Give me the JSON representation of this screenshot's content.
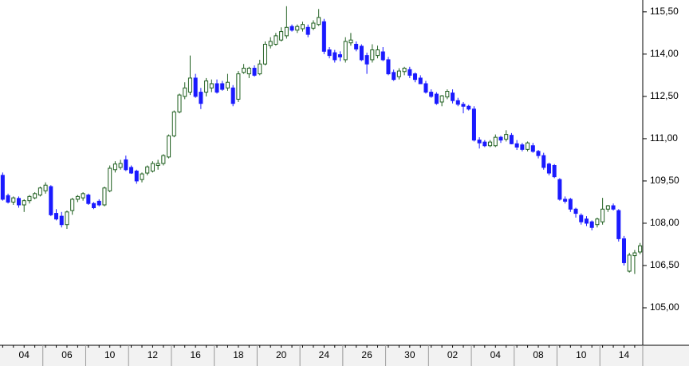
{
  "chart_data": {
    "type": "candlestick",
    "categories": [
      null,
      null,
      null,
      null,
      "04",
      null,
      null,
      null,
      null,
      null,
      null,
      null,
      "06",
      null,
      null,
      null,
      null,
      null,
      null,
      null,
      "10",
      null,
      null,
      null,
      null,
      null,
      null,
      null,
      "12",
      null,
      null,
      null,
      null,
      null,
      null,
      null,
      "16",
      null,
      null,
      null,
      null,
      null,
      null,
      null,
      "18",
      null,
      null,
      null,
      null,
      null,
      null,
      null,
      "20",
      null,
      null,
      null,
      null,
      null,
      null,
      null,
      "24",
      null,
      null,
      null,
      null,
      null,
      null,
      null,
      "26",
      null,
      null,
      null,
      null,
      null,
      null,
      null,
      "30",
      null,
      null,
      null,
      null,
      null,
      null,
      null,
      "02",
      null,
      null,
      null,
      null,
      null,
      null,
      null,
      "04",
      null,
      null,
      null,
      null,
      null,
      null,
      null,
      "08",
      null,
      null,
      null,
      null,
      null,
      null,
      null,
      "10",
      null,
      null,
      null,
      null,
      null,
      null,
      null,
      "14",
      null,
      null,
      null
    ],
    "open": [
      109.7,
      108.98,
      108.75,
      108.88,
      108.65,
      108.8,
      108.9,
      109.0,
      109.15,
      109.3,
      108.35,
      108.25,
      107.95,
      108.45,
      108.85,
      108.9,
      109.0,
      108.7,
      108.78,
      108.65,
      109.15,
      109.9,
      109.98,
      110.25,
      109.98,
      109.85,
      109.55,
      109.78,
      109.85,
      110.05,
      110.12,
      110.35,
      111.1,
      111.95,
      112.5,
      112.65,
      113.15,
      112.65,
      112.65,
      112.8,
      112.95,
      112.95,
      112.8,
      112.8,
      112.4,
      113.35,
      113.3,
      113.5,
      113.3,
      113.65,
      114.3,
      114.35,
      114.5,
      114.65,
      114.98,
      114.85,
      114.9,
      114.95,
      114.92,
      115.05,
      115.15,
      114.15,
      114.05,
      113.98,
      113.8,
      114.4,
      114.35,
      114.28,
      113.95,
      113.8,
      113.95,
      114.08,
      113.8,
      113.35,
      113.2,
      113.38,
      113.45,
      113.3,
      113.15,
      112.95,
      112.65,
      112.58,
      112.3,
      112.48,
      112.62,
      112.35,
      112.22,
      112.15,
      112.05,
      110.95,
      110.88,
      110.75,
      110.75,
      111.05,
      110.98,
      111.12,
      110.82,
      110.78,
      110.62,
      110.75,
      110.55,
      110.4,
      110.1,
      110.05,
      109.55,
      108.85,
      108.85,
      108.5,
      108.28,
      108.15,
      108.05,
      107.95,
      108.05,
      108.5,
      108.62,
      108.45,
      107.45,
      106.3,
      106.85,
      106.98
    ],
    "high": [
      109.8,
      109.05,
      108.95,
      108.95,
      108.85,
      109.0,
      109.1,
      109.3,
      109.45,
      109.35,
      108.5,
      108.4,
      108.45,
      108.9,
      109.0,
      109.1,
      109.05,
      108.75,
      108.85,
      109.3,
      110.05,
      110.2,
      110.25,
      110.4,
      110.05,
      109.9,
      109.8,
      110.05,
      110.2,
      110.25,
      110.45,
      111.15,
      112.0,
      112.6,
      113.0,
      113.95,
      113.3,
      112.8,
      113.15,
      113.1,
      113.1,
      113.05,
      113.3,
      112.9,
      113.4,
      113.65,
      113.55,
      113.6,
      113.8,
      114.45,
      114.6,
      114.75,
      114.95,
      115.7,
      115.05,
      115.05,
      115.15,
      115.05,
      115.2,
      115.6,
      115.25,
      114.25,
      114.15,
      114.1,
      114.6,
      114.75,
      114.45,
      114.35,
      114.05,
      114.35,
      114.3,
      114.25,
      113.9,
      113.45,
      113.5,
      113.55,
      113.55,
      113.35,
      113.25,
      113.05,
      112.75,
      112.65,
      112.55,
      112.75,
      112.75,
      112.45,
      112.3,
      112.2,
      112.15,
      111.05,
      110.95,
      110.95,
      111.15,
      111.1,
      111.3,
      111.2,
      110.95,
      110.85,
      110.9,
      110.85,
      110.6,
      110.5,
      110.15,
      110.1,
      109.6,
      108.95,
      108.9,
      108.55,
      108.35,
      108.25,
      108.1,
      108.2,
      108.9,
      108.65,
      108.7,
      108.5,
      107.55,
      106.95,
      107.05,
      107.3
    ],
    "low": [
      108.8,
      108.7,
      108.65,
      108.55,
      108.4,
      108.7,
      108.85,
      108.95,
      109.05,
      108.25,
      108.1,
      107.85,
      107.8,
      108.3,
      108.75,
      108.8,
      108.65,
      108.5,
      108.6,
      108.6,
      109.1,
      109.8,
      109.9,
      109.85,
      109.75,
      109.4,
      109.45,
      109.7,
      109.8,
      109.9,
      110.05,
      110.3,
      111.05,
      111.9,
      112.4,
      112.55,
      112.45,
      112.05,
      112.5,
      112.65,
      112.6,
      112.7,
      112.7,
      112.15,
      112.3,
      113.3,
      113.15,
      113.2,
      113.25,
      113.6,
      114.2,
      114.3,
      114.45,
      114.55,
      114.8,
      114.75,
      114.8,
      114.6,
      114.85,
      115.0,
      114.0,
      113.85,
      113.7,
      113.75,
      113.7,
      114.3,
      114.1,
      113.75,
      113.3,
      113.7,
      113.85,
      113.75,
      113.25,
      113.05,
      113.1,
      113.25,
      113.15,
      113.0,
      112.95,
      112.6,
      112.45,
      112.2,
      112.15,
      112.4,
      112.25,
      112.15,
      111.9,
      112.0,
      110.9,
      110.65,
      110.7,
      110.7,
      110.7,
      110.85,
      110.9,
      110.8,
      110.6,
      110.55,
      110.55,
      110.5,
      110.3,
      109.9,
      109.7,
      109.6,
      108.8,
      108.7,
      108.4,
      108.2,
      107.95,
      107.9,
      107.75,
      107.85,
      107.95,
      108.4,
      108.45,
      107.35,
      106.5,
      106.25,
      106.2,
      106.9
    ],
    "close": [
      108.85,
      108.75,
      108.9,
      108.65,
      108.8,
      108.95,
      109.05,
      109.25,
      109.35,
      108.3,
      108.15,
      107.95,
      108.4,
      108.85,
      108.95,
      109.05,
      108.7,
      108.55,
      108.65,
      109.25,
      109.95,
      110.1,
      110.12,
      109.9,
      109.78,
      109.5,
      109.75,
      110.0,
      110.12,
      110.12,
      110.4,
      111.1,
      111.95,
      112.55,
      112.8,
      113.15,
      112.5,
      112.25,
      113.05,
      112.95,
      112.65,
      112.75,
      113.0,
      112.25,
      113.3,
      113.5,
      113.5,
      113.25,
      113.65,
      114.35,
      114.45,
      114.65,
      114.8,
      114.95,
      114.85,
      114.98,
      115.05,
      114.7,
      115.1,
      115.3,
      114.1,
      113.95,
      113.8,
      113.9,
      114.45,
      114.5,
      114.18,
      113.8,
      113.65,
      114.15,
      114.15,
      113.8,
      113.3,
      113.1,
      113.4,
      113.5,
      113.25,
      113.1,
      112.95,
      112.65,
      112.5,
      112.25,
      112.52,
      112.68,
      112.35,
      112.22,
      112.15,
      112.05,
      110.95,
      110.85,
      110.75,
      110.88,
      111.05,
      110.95,
      111.15,
      110.82,
      110.7,
      110.62,
      110.85,
      110.55,
      110.4,
      109.98,
      109.78,
      109.65,
      108.85,
      108.78,
      108.5,
      108.35,
      108.05,
      108.0,
      107.85,
      108.15,
      108.5,
      108.62,
      108.5,
      107.45,
      106.6,
      106.87,
      106.95,
      107.2
    ],
    "up_color": "#ffffff",
    "up_edge_color": "#1f5f1f",
    "down_color": "#1a1aff",
    "ylim": [
      103.67,
      115.92
    ],
    "yticks": [
      {
        "value": 105,
        "label": "105,00"
      },
      {
        "value": 106.5,
        "label": "106,50"
      },
      {
        "value": 108,
        "label": "108,00"
      },
      {
        "value": 109.5,
        "label": "109,50"
      },
      {
        "value": 111,
        "label": "111,00"
      },
      {
        "value": 112.5,
        "label": "112,50"
      },
      {
        "value": 114,
        "label": "114,00"
      },
      {
        "value": 115.5,
        "label": "115,50"
      }
    ]
  }
}
